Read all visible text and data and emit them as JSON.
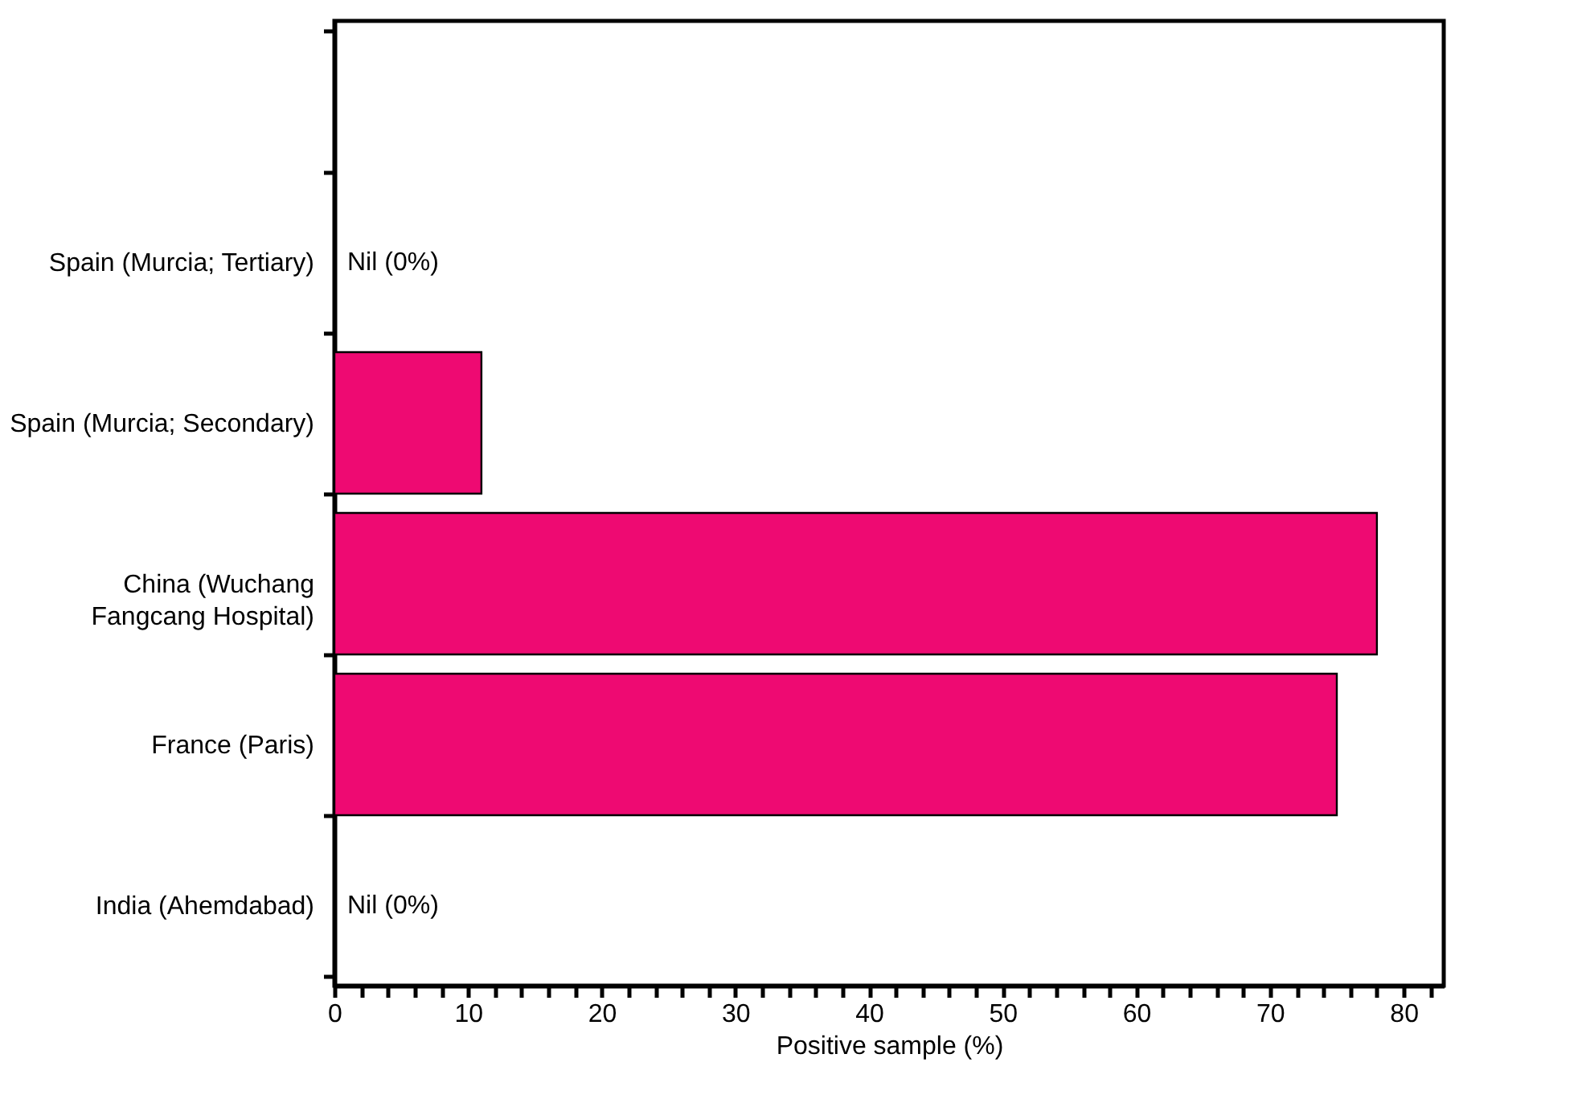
{
  "chart_data": {
    "type": "bar",
    "orientation": "horizontal",
    "xlabel": "Positive sample (%)",
    "categories": [
      null,
      "Spain (Murcia; Tertiary)",
      "Spain (Murcia; Secondary)",
      "China (Wuchang\nFangcang Hospital)",
      "France (Paris)",
      "India (Ahemdabad)"
    ],
    "values": [
      null,
      0,
      11,
      78,
      75,
      0
    ],
    "value_labels": [
      null,
      "Nil (0%)",
      null,
      null,
      null,
      "Nil (0%)"
    ],
    "color": "#ee0a72",
    "xlim": [
      0,
      83
    ],
    "xticks": [
      0,
      {
        "value": 2,
        "label": null
      },
      {
        "value": 4,
        "label": null
      },
      {
        "value": 6,
        "label": null
      },
      {
        "value": 8,
        "label": null
      },
      10,
      {
        "value": 12,
        "label": null
      },
      {
        "value": 14,
        "label": null
      },
      {
        "value": 16,
        "label": null
      },
      {
        "value": 18,
        "label": null
      },
      20,
      {
        "value": 22,
        "label": null
      },
      {
        "value": 24,
        "label": null
      },
      {
        "value": 26,
        "label": null
      },
      {
        "value": 28,
        "label": null
      },
      30,
      {
        "value": 32,
        "label": null
      },
      {
        "value": 34,
        "label": null
      },
      {
        "value": 36,
        "label": null
      },
      {
        "value": 38,
        "label": null
      },
      40,
      {
        "value": 42,
        "label": null
      },
      {
        "value": 44,
        "label": null
      },
      {
        "value": 46,
        "label": null
      },
      {
        "value": 48,
        "label": null
      },
      50,
      {
        "value": 52,
        "label": null
      },
      {
        "value": 54,
        "label": null
      },
      {
        "value": 56,
        "label": null
      },
      {
        "value": 58,
        "label": null
      },
      60,
      {
        "value": 62,
        "label": null
      },
      {
        "value": 64,
        "label": null
      },
      {
        "value": 66,
        "label": null
      },
      {
        "value": 68,
        "label": null
      },
      70,
      {
        "value": 72,
        "label": null
      },
      {
        "value": 74,
        "label": null
      },
      {
        "value": 76,
        "label": null
      },
      {
        "value": 78,
        "label": null
      },
      80,
      {
        "value": 82,
        "label": null
      }
    ],
    "grid": false
  }
}
